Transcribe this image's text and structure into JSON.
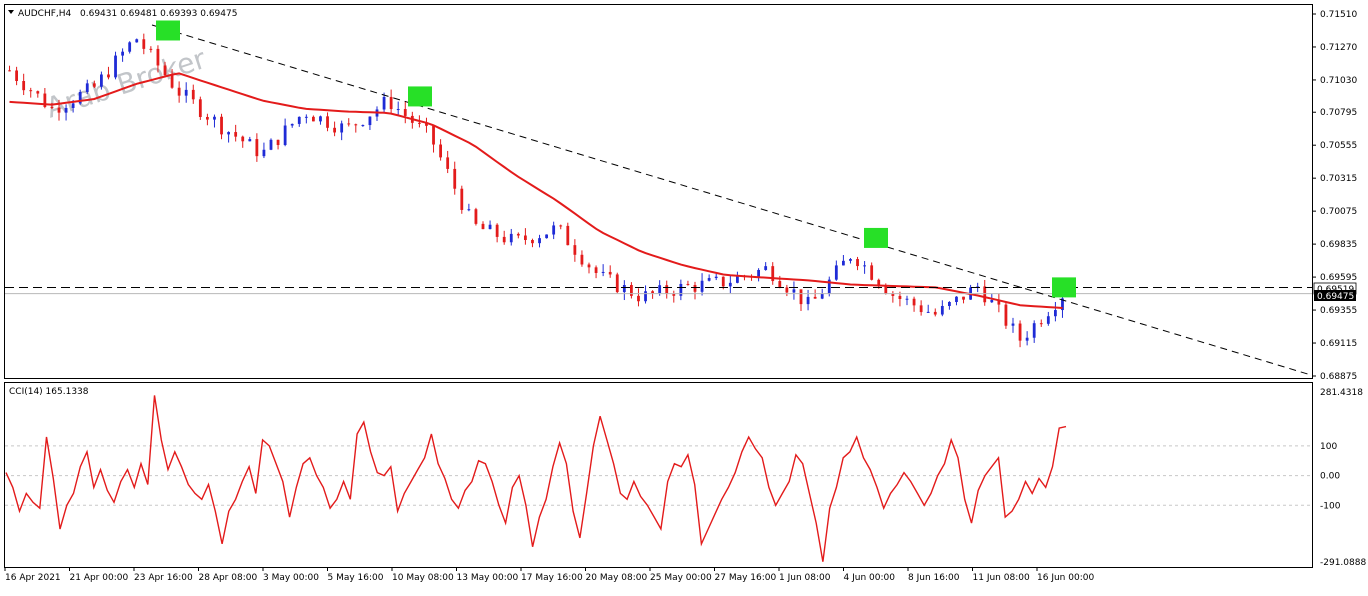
{
  "header": {
    "symbol": "AUDCHF,H4",
    "ohlc": "0.69431 0.69481 0.69393 0.69475"
  },
  "watermark": "Arab Broker",
  "colors": {
    "bull": "#1f2bd6",
    "bear": "#e31b1b",
    "ma": "#e31b1b",
    "cci": "#e31b1b",
    "trendline": "#000000",
    "highlight": "#27e027"
  },
  "chart_data": [
    {
      "type": "candlestick",
      "title": "AUDCHF,H4",
      "price_axis": {
        "ticks": [
          "0.71510",
          "0.71270",
          "0.71030",
          "0.70795",
          "0.70555",
          "0.70315",
          "0.70075",
          "0.69835",
          "0.69595",
          "0.69355",
          "0.69115",
          "0.68875"
        ],
        "ylim": [
          0.68875,
          0.7151
        ]
      },
      "current_price_labels": [
        "0.69519",
        "0.69475"
      ],
      "horizontal_level": 0.69519,
      "trendline": {
        "from": {
          "date": "23 Apr 2021 16:00",
          "price": 0.7143
        },
        "to": {
          "date": "18 Jun 2021",
          "price": 0.6888
        }
      },
      "touch_points": [
        {
          "date": "23 Apr 16:00",
          "price": 0.7139
        },
        {
          "date": "10 May 08:00",
          "price": 0.7091
        },
        {
          "date": "4 Jun 08:00",
          "price": 0.6988
        },
        {
          "date": "16 Jun 08:00",
          "price": 0.6952
        }
      ],
      "moving_average_trend": [
        0.7087,
        0.7085,
        0.7089,
        0.71,
        0.7108,
        0.7098,
        0.7088,
        0.7082,
        0.708,
        0.7079,
        0.7071,
        0.7056,
        0.7034,
        0.7015,
        0.6993,
        0.6978,
        0.6968,
        0.6961,
        0.6959,
        0.6957,
        0.6954,
        0.6953,
        0.6952,
        0.6946,
        0.6939,
        0.6937
      ],
      "close_trend": [
        0.711,
        0.7082,
        0.7097,
        0.7134,
        0.7095,
        0.707,
        0.7049,
        0.708,
        0.7067,
        0.7088,
        0.7061,
        0.6997,
        0.6985,
        0.6995,
        0.696,
        0.6945,
        0.6952,
        0.6956,
        0.6966,
        0.6938,
        0.6977,
        0.6946,
        0.6932,
        0.6953,
        0.6914,
        0.6947
      ]
    },
    {
      "type": "line",
      "title": "CCI(14) 165.1338",
      "axis": {
        "ticks": [
          "281.4318",
          "100",
          "0.00",
          "-100",
          "-291.0888"
        ],
        "ylim": [
          -291.0888,
          281.4318
        ]
      },
      "levels": [
        100,
        0,
        -100
      ],
      "current_value": 165.1338,
      "values": [
        10,
        -40,
        -120,
        -60,
        -90,
        -110,
        130,
        -10,
        -180,
        -100,
        -60,
        30,
        80,
        -40,
        20,
        -50,
        -90,
        -20,
        20,
        -40,
        40,
        -30,
        270,
        120,
        20,
        80,
        30,
        -30,
        -60,
        -80,
        -30,
        -120,
        -230,
        -120,
        -80,
        -20,
        30,
        -60,
        120,
        100,
        40,
        -20,
        -140,
        -40,
        40,
        60,
        0,
        -40,
        -110,
        -80,
        -20,
        -80,
        140,
        180,
        80,
        10,
        0,
        30,
        -120,
        -60,
        -20,
        20,
        60,
        140,
        40,
        -10,
        -80,
        -110,
        -50,
        -20,
        50,
        40,
        -20,
        -100,
        -160,
        -40,
        0,
        -100,
        -240,
        -140,
        -80,
        30,
        110,
        40,
        -120,
        -210,
        -60,
        100,
        200,
        120,
        40,
        -60,
        -80,
        -20,
        -70,
        -100,
        -140,
        -180,
        -20,
        40,
        30,
        70,
        -30,
        -230,
        -180,
        -130,
        -80,
        -40,
        10,
        80,
        130,
        90,
        60,
        -40,
        -100,
        -60,
        -20,
        70,
        40,
        -60,
        -160,
        -290,
        -110,
        -40,
        60,
        80,
        130,
        60,
        20,
        -40,
        -110,
        -60,
        -30,
        10,
        -20,
        -60,
        -100,
        -60,
        0,
        40,
        120,
        60,
        -80,
        -160,
        -50,
        0,
        30,
        60,
        -140,
        -120,
        -80,
        -20,
        -60,
        -10,
        -40,
        30,
        160,
        165
      ]
    }
  ],
  "time_axis": {
    "labels": [
      "16 Apr 2021",
      "21 Apr 00:00",
      "23 Apr 16:00",
      "28 Apr 08:00",
      "3 May 00:00",
      "5 May 16:00",
      "10 May 08:00",
      "13 May 00:00",
      "17 May 16:00",
      "20 May 08:00",
      "25 May 00:00",
      "27 May 16:00",
      "1 Jun 08:00",
      "4 Jun 00:00",
      "8 Jun 16:00",
      "11 Jun 08:00",
      "16 Jun 00:00"
    ]
  }
}
